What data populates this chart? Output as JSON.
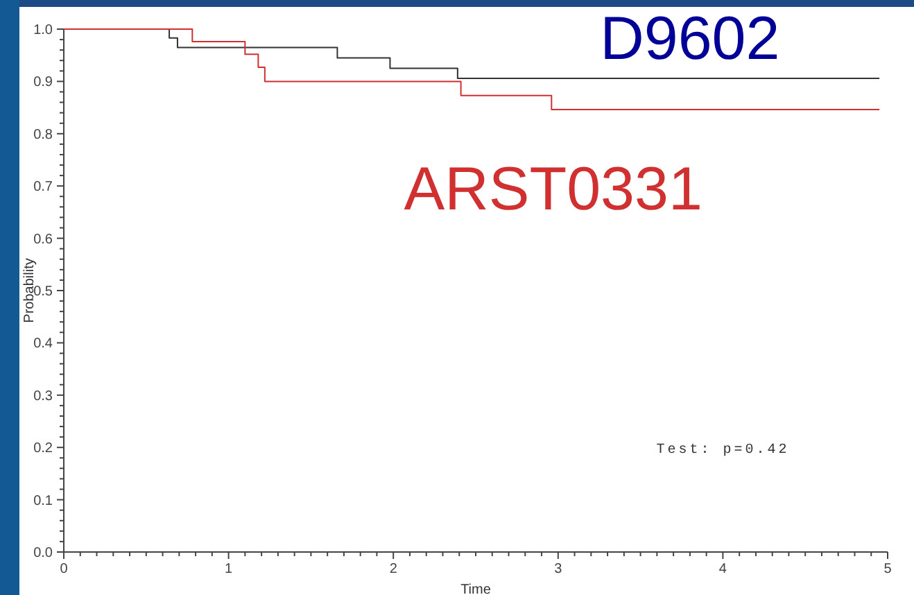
{
  "chart_data": {
    "type": "step",
    "xlabel": "Time",
    "ylabel": "Probability",
    "xlim": [
      0,
      5
    ],
    "xticks": [
      0,
      1,
      2,
      3,
      4,
      5
    ],
    "ylim": [
      0,
      1
    ],
    "yticks": [
      {
        "value": 0,
        "label": "0.0"
      },
      0.1,
      0.2,
      0.3,
      0.4,
      0.5,
      0.6,
      0.7,
      0.8,
      0.9,
      {
        "value": 1,
        "label": "1.0"
      }
    ],
    "grid": false,
    "legend": false,
    "line_style": "solid",
    "series": [
      {
        "name": "D9602",
        "color": "#333333",
        "x": [
          0,
          0.64,
          0.69,
          1.66,
          1.98,
          2.39,
          4.95
        ],
        "values": [
          1,
          0.983,
          0.965,
          0.945,
          0.925,
          0.906,
          0.906
        ]
      },
      {
        "name": "ARST0331",
        "color": "#d03030",
        "x": [
          0,
          0.78,
          1.1,
          1.18,
          1.22,
          2.41,
          2.96,
          4.95
        ],
        "values": [
          1,
          0.976,
          0.952,
          0.927,
          0.9,
          0.873,
          0.846,
          0.846
        ]
      }
    ],
    "annotations": [
      "Test: p=0.42"
    ]
  }
}
